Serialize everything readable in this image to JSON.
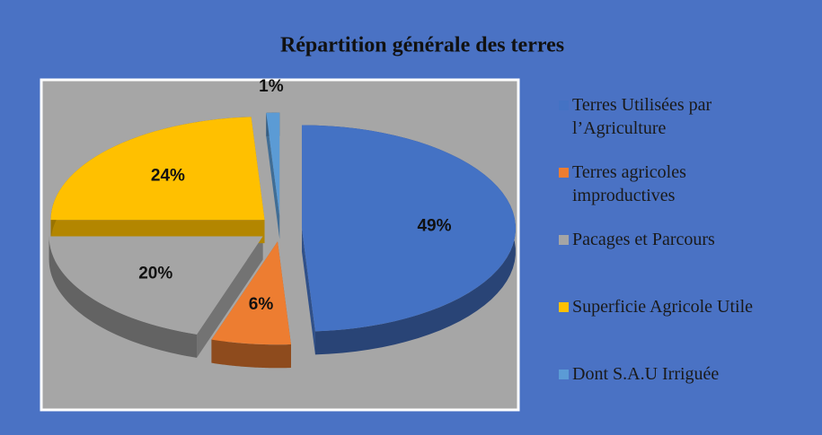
{
  "chart_data": {
    "type": "pie",
    "title": "Répartition générale des terres",
    "categories": [
      "Terres Utilisées par l’Agriculture",
      "Terres agricoles improductives",
      "Pacages et Parcours",
      "Superficie Agricole Utile",
      "Dont S.A.U Irriguée"
    ],
    "values": [
      49,
      6,
      20,
      24,
      1
    ],
    "value_labels": [
      "49%",
      "6%",
      "20%",
      "24%",
      "1%"
    ],
    "colors": [
      "#4472c4",
      "#ed7d31",
      "#a5a5a5",
      "#ffc000",
      "#5b9bd5"
    ],
    "legend": "right"
  }
}
